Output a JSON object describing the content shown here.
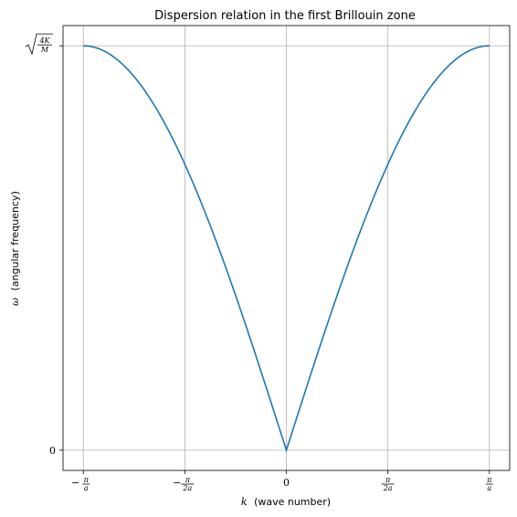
{
  "chart_data": {
    "type": "line",
    "title": "Dispersion relation in the first Brillouin zone",
    "xlabel_symbol": "k",
    "xlabel_text": "(wave number)",
    "ylabel_symbol": "ω",
    "ylabel_text": "(angular frequency)",
    "x_units": "π/a",
    "xlim": [
      -1.1,
      1.1
    ],
    "ylim": [
      -0.05,
      1.05
    ],
    "grid": true,
    "x_ticks": [
      {
        "value": -1.0,
        "sign": "−",
        "num": "π",
        "den": "a"
      },
      {
        "value": -0.5,
        "sign": "−",
        "num": "π",
        "den": "2a"
      },
      {
        "value": 0.0,
        "sign": "",
        "num": "",
        "den": "",
        "plain": "0"
      },
      {
        "value": 0.5,
        "sign": "",
        "num": "π",
        "den": "2a"
      },
      {
        "value": 1.0,
        "sign": "",
        "num": "π",
        "den": "a"
      }
    ],
    "y_ticks": [
      {
        "value": 0.0,
        "plain": "0"
      },
      {
        "value": 1.0,
        "sqrt_num": "4K",
        "sqrt_den": "M"
      }
    ],
    "series": [
      {
        "color": "#1f77b4",
        "x": [
          -1.0,
          -0.9,
          -0.8,
          -0.7,
          -0.6,
          -0.5,
          -0.4,
          -0.3,
          -0.2,
          -0.1,
          0.0,
          0.1,
          0.2,
          0.3,
          0.4,
          0.5,
          0.6,
          0.7,
          0.8,
          0.9,
          1.0
        ],
        "y": [
          1.0,
          0.988,
          0.951,
          0.891,
          0.809,
          0.707,
          0.588,
          0.454,
          0.309,
          0.156,
          0.0,
          0.156,
          0.309,
          0.454,
          0.588,
          0.707,
          0.809,
          0.891,
          0.951,
          0.988,
          1.0
        ]
      }
    ]
  }
}
